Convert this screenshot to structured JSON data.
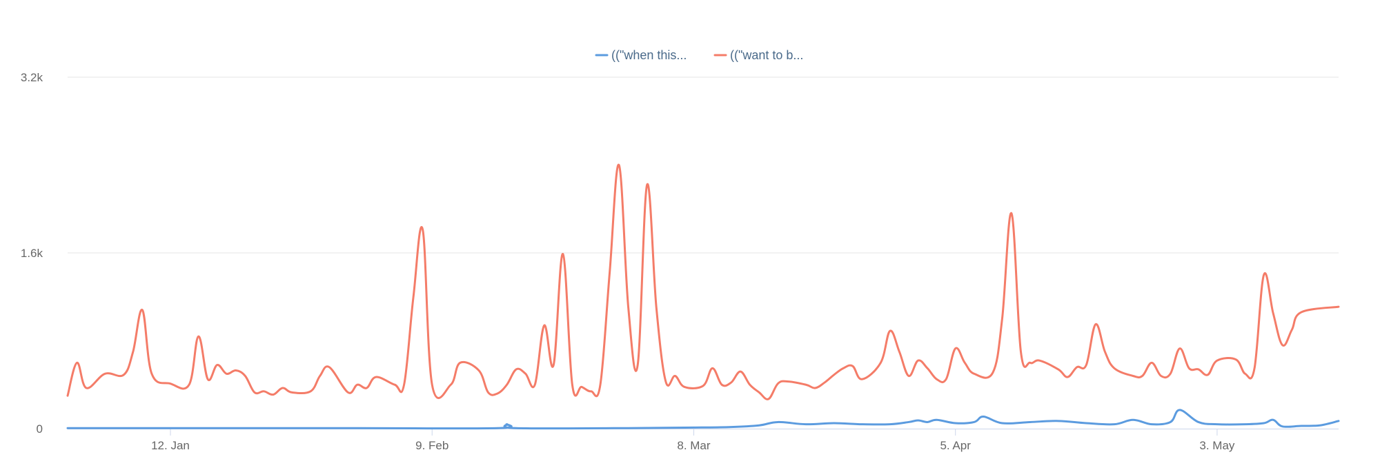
{
  "chart_data": {
    "type": "line",
    "title": "",
    "xlabel": "",
    "ylabel": "",
    "x_range": [
      "2020-01-01",
      "2020-05-16"
    ],
    "ylim": [
      0,
      3200
    ],
    "y_ticks": [
      {
        "value": 0,
        "label": "0"
      },
      {
        "value": 1600,
        "label": "1.6k"
      },
      {
        "value": 3200,
        "label": "3.2k"
      }
    ],
    "x_ticks": [
      {
        "date": "2020-01-12",
        "label": "12. Jan"
      },
      {
        "date": "2020-02-09",
        "label": "9. Feb"
      },
      {
        "date": "2020-03-08",
        "label": "8. Mar"
      },
      {
        "date": "2020-04-05",
        "label": "5. Apr"
      },
      {
        "date": "2020-05-03",
        "label": "3. May"
      }
    ],
    "grid": {
      "horizontal": true,
      "vertical": false
    },
    "legend": {
      "position": "top-center"
    },
    "series": [
      {
        "name": "((\"when this...",
        "color": "#5b9bdf",
        "points": [
          [
            "2020-01-01",
            5
          ],
          [
            "2020-01-15",
            5
          ],
          [
            "2020-02-01",
            5
          ],
          [
            "2020-02-16",
            5
          ],
          [
            "2020-02-17",
            40
          ],
          [
            "2020-02-18",
            5
          ],
          [
            "2020-03-01",
            5
          ],
          [
            "2020-03-08",
            10
          ],
          [
            "2020-03-12",
            15
          ],
          [
            "2020-03-15",
            30
          ],
          [
            "2020-03-17",
            60
          ],
          [
            "2020-03-20",
            40
          ],
          [
            "2020-03-23",
            50
          ],
          [
            "2020-03-26",
            40
          ],
          [
            "2020-03-29",
            40
          ],
          [
            "2020-03-31",
            60
          ],
          [
            "2020-04-01",
            75
          ],
          [
            "2020-04-02",
            60
          ],
          [
            "2020-04-03",
            80
          ],
          [
            "2020-04-05",
            50
          ],
          [
            "2020-04-07",
            60
          ],
          [
            "2020-04-08",
            110
          ],
          [
            "2020-04-10",
            50
          ],
          [
            "2020-04-13",
            60
          ],
          [
            "2020-04-16",
            70
          ],
          [
            "2020-04-19",
            50
          ],
          [
            "2020-04-22",
            40
          ],
          [
            "2020-04-24",
            80
          ],
          [
            "2020-04-26",
            40
          ],
          [
            "2020-04-28",
            60
          ],
          [
            "2020-04-29",
            170
          ],
          [
            "2020-05-01",
            60
          ],
          [
            "2020-05-03",
            40
          ],
          [
            "2020-05-06",
            40
          ],
          [
            "2020-05-08",
            50
          ],
          [
            "2020-05-09",
            80
          ],
          [
            "2020-05-10",
            20
          ],
          [
            "2020-05-12",
            25
          ],
          [
            "2020-05-14",
            30
          ],
          [
            "2020-05-16",
            70
          ]
        ]
      },
      {
        "name": "((\"want to b...",
        "color": "#f47c68",
        "points": [
          [
            "2020-01-01",
            300
          ],
          [
            "2020-01-02",
            600
          ],
          [
            "2020-01-03",
            370
          ],
          [
            "2020-01-05",
            500
          ],
          [
            "2020-01-07",
            490
          ],
          [
            "2020-01-08",
            700
          ],
          [
            "2020-01-09",
            1080
          ],
          [
            "2020-01-10",
            500
          ],
          [
            "2020-01-12",
            410
          ],
          [
            "2020-01-14",
            400
          ],
          [
            "2020-01-15",
            840
          ],
          [
            "2020-01-16",
            450
          ],
          [
            "2020-01-17",
            580
          ],
          [
            "2020-01-18",
            500
          ],
          [
            "2020-01-19",
            530
          ],
          [
            "2020-01-20",
            480
          ],
          [
            "2020-01-21",
            330
          ],
          [
            "2020-01-22",
            340
          ],
          [
            "2020-01-23",
            310
          ],
          [
            "2020-01-24",
            370
          ],
          [
            "2020-01-25",
            330
          ],
          [
            "2020-01-27",
            340
          ],
          [
            "2020-01-28",
            480
          ],
          [
            "2020-01-29",
            560
          ],
          [
            "2020-01-31",
            330
          ],
          [
            "2020-02-01",
            400
          ],
          [
            "2020-02-02",
            370
          ],
          [
            "2020-02-03",
            470
          ],
          [
            "2020-02-05",
            400
          ],
          [
            "2020-02-06",
            400
          ],
          [
            "2020-02-07",
            1200
          ],
          [
            "2020-02-08",
            1810
          ],
          [
            "2020-02-09",
            400
          ],
          [
            "2020-02-11",
            400
          ],
          [
            "2020-02-12",
            600
          ],
          [
            "2020-02-14",
            530
          ],
          [
            "2020-02-15",
            330
          ],
          [
            "2020-02-16",
            320
          ],
          [
            "2020-02-17",
            400
          ],
          [
            "2020-02-18",
            540
          ],
          [
            "2020-02-19",
            500
          ],
          [
            "2020-02-20",
            400
          ],
          [
            "2020-02-21",
            940
          ],
          [
            "2020-02-22",
            580
          ],
          [
            "2020-02-23",
            1590
          ],
          [
            "2020-02-24",
            400
          ],
          [
            "2020-02-25",
            380
          ],
          [
            "2020-02-26",
            340
          ],
          [
            "2020-02-27",
            400
          ],
          [
            "2020-02-28",
            1420
          ],
          [
            "2020-02-29",
            2400
          ],
          [
            "2020-03-01",
            1100
          ],
          [
            "2020-03-02",
            580
          ],
          [
            "2020-03-03",
            2220
          ],
          [
            "2020-03-04",
            1100
          ],
          [
            "2020-03-05",
            430
          ],
          [
            "2020-03-06",
            480
          ],
          [
            "2020-03-07",
            380
          ],
          [
            "2020-03-09",
            390
          ],
          [
            "2020-03-10",
            550
          ],
          [
            "2020-03-11",
            400
          ],
          [
            "2020-03-12",
            420
          ],
          [
            "2020-03-13",
            520
          ],
          [
            "2020-03-14",
            400
          ],
          [
            "2020-03-15",
            330
          ],
          [
            "2020-03-16",
            270
          ],
          [
            "2020-03-17",
            410
          ],
          [
            "2020-03-18",
            430
          ],
          [
            "2020-03-20",
            400
          ],
          [
            "2020-03-21",
            370
          ],
          [
            "2020-03-22",
            420
          ],
          [
            "2020-03-23",
            490
          ],
          [
            "2020-03-24",
            550
          ],
          [
            "2020-03-25",
            570
          ],
          [
            "2020-03-26",
            450
          ],
          [
            "2020-03-28",
            600
          ],
          [
            "2020-03-29",
            890
          ],
          [
            "2020-03-30",
            700
          ],
          [
            "2020-03-31",
            480
          ],
          [
            "2020-04-01",
            620
          ],
          [
            "2020-04-02",
            550
          ],
          [
            "2020-04-03",
            450
          ],
          [
            "2020-04-04",
            450
          ],
          [
            "2020-04-05",
            730
          ],
          [
            "2020-04-06",
            600
          ],
          [
            "2020-04-07",
            500
          ],
          [
            "2020-04-09",
            510
          ],
          [
            "2020-04-10",
            1000
          ],
          [
            "2020-04-11",
            1960
          ],
          [
            "2020-04-12",
            700
          ],
          [
            "2020-04-13",
            600
          ],
          [
            "2020-04-14",
            620
          ],
          [
            "2020-04-16",
            540
          ],
          [
            "2020-04-17",
            470
          ],
          [
            "2020-04-18",
            560
          ],
          [
            "2020-04-19",
            580
          ],
          [
            "2020-04-20",
            950
          ],
          [
            "2020-04-21",
            700
          ],
          [
            "2020-04-22",
            550
          ],
          [
            "2020-04-24",
            480
          ],
          [
            "2020-04-25",
            480
          ],
          [
            "2020-04-26",
            600
          ],
          [
            "2020-04-27",
            480
          ],
          [
            "2020-04-28",
            500
          ],
          [
            "2020-04-29",
            730
          ],
          [
            "2020-04-30",
            550
          ],
          [
            "2020-05-01",
            540
          ],
          [
            "2020-05-02",
            490
          ],
          [
            "2020-05-03",
            620
          ],
          [
            "2020-05-05",
            630
          ],
          [
            "2020-05-06",
            500
          ],
          [
            "2020-05-07",
            550
          ],
          [
            "2020-05-08",
            1400
          ],
          [
            "2020-05-09",
            1050
          ],
          [
            "2020-05-10",
            760
          ],
          [
            "2020-05-11",
            900
          ],
          [
            "2020-05-12",
            1060
          ],
          [
            "2020-05-16",
            1110
          ]
        ]
      }
    ]
  }
}
